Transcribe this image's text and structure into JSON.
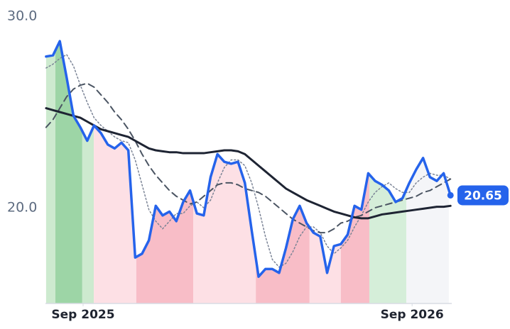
{
  "chart_data": {
    "type": "line",
    "x": [
      -1.35,
      -1.1,
      -0.85,
      -0.6,
      -0.35,
      -0.1,
      0.15,
      0.4,
      0.65,
      0.9,
      1.15,
      1.4,
      1.65,
      1.9,
      2.15,
      2.4,
      2.65,
      2.9,
      3.15,
      3.4,
      3.65,
      3.9,
      4.15,
      4.4,
      4.65,
      4.9,
      5.15,
      5.4,
      5.65,
      5.9,
      6.15,
      6.4,
      6.65,
      6.9,
      7.15,
      7.4,
      7.65,
      7.9,
      8.15,
      8.4,
      8.65,
      8.9,
      9.15,
      9.4,
      9.65,
      9.9,
      10.15,
      10.4,
      10.65,
      10.9,
      11.15,
      11.4,
      11.65,
      11.9,
      12.15,
      12.4,
      12.65,
      12.9,
      13.15,
      13.4
    ],
    "xlim": [
      -1.373,
      13.446
    ],
    "xticks": [
      {
        "value": 0,
        "label": "Sep 2025"
      },
      {
        "value": 12,
        "label": "Sep 2026"
      }
    ],
    "ylim": [
      15,
      30
    ],
    "yticks": [
      {
        "value": 20,
        "label": "20.0"
      },
      {
        "value": 30,
        "label": "30.0"
      }
    ],
    "series": [
      {
        "color": "#2563eb",
        "style": "solid",
        "width": 3.5,
        "values": [
          27.9,
          27.96,
          28.7,
          26.8,
          24.8,
          24.2,
          23.5,
          24.3,
          23.9,
          23.3,
          23.1,
          23.4,
          23.0,
          17.4,
          17.6,
          18.3,
          20.1,
          19.6,
          19.8,
          19.3,
          20.3,
          20.9,
          19.7,
          19.6,
          21.6,
          22.8,
          22.4,
          22.3,
          22.4,
          21.3,
          18.8,
          16.4,
          16.8,
          16.8,
          16.6,
          17.9,
          19.4,
          20.1,
          19.2,
          18.7,
          18.5,
          16.6,
          18.0,
          18.1,
          18.6,
          20.1,
          19.9,
          21.8,
          21.4,
          21.2,
          20.9,
          20.3,
          20.5,
          21.3,
          22.0,
          22.6,
          21.6,
          21.4,
          21.8,
          20.65
        ]
      },
      {
        "color": "#1e2433",
        "style": "solid",
        "width": 3,
        "values": [
          25.2,
          25.1,
          25.0,
          24.9,
          24.8,
          24.7,
          24.5,
          24.3,
          24.1,
          24.0,
          23.9,
          23.8,
          23.7,
          23.5,
          23.3,
          23.1,
          23.0,
          22.95,
          22.9,
          22.9,
          22.85,
          22.85,
          22.85,
          22.85,
          22.9,
          22.95,
          23.0,
          23.0,
          22.95,
          22.8,
          22.5,
          22.2,
          21.9,
          21.6,
          21.3,
          21.0,
          20.8,
          20.6,
          20.4,
          20.25,
          20.1,
          19.95,
          19.8,
          19.7,
          19.6,
          19.5,
          19.45,
          19.45,
          19.55,
          19.65,
          19.7,
          19.75,
          19.8,
          19.85,
          19.9,
          19.95,
          20.0,
          20.05,
          20.05,
          20.1
        ]
      },
      {
        "color": "#4b5563",
        "style": "dashed",
        "width": 2,
        "values": [
          24.2,
          24.6,
          25.2,
          25.8,
          26.2,
          26.4,
          26.5,
          26.3,
          25.9,
          25.5,
          25.0,
          24.6,
          24.1,
          23.5,
          22.8,
          22.2,
          21.7,
          21.3,
          20.9,
          20.6,
          20.4,
          20.2,
          20.3,
          20.6,
          20.9,
          21.2,
          21.3,
          21.3,
          21.2,
          21.0,
          20.9,
          20.8,
          20.6,
          20.3,
          20.0,
          19.7,
          19.4,
          19.2,
          19.0,
          18.8,
          18.7,
          18.7,
          18.9,
          19.2,
          19.3,
          19.5,
          19.6,
          19.8,
          20.0,
          20.1,
          20.2,
          20.3,
          20.4,
          20.5,
          20.6,
          20.8,
          20.9,
          21.1,
          21.3,
          21.5
        ]
      },
      {
        "color": "#7b8496",
        "style": "dotted",
        "width": 1.5,
        "values": [
          27.3,
          27.5,
          27.8,
          28.0,
          27.4,
          26.4,
          25.5,
          24.7,
          24.3,
          24.0,
          23.7,
          23.5,
          23.4,
          22.5,
          21.2,
          19.9,
          19.3,
          18.9,
          19.3,
          19.7,
          19.7,
          20.1,
          20.3,
          20.0,
          20.4,
          21.3,
          22.1,
          22.5,
          22.5,
          22.2,
          21.3,
          20.0,
          18.5,
          17.3,
          16.9,
          17.1,
          17.7,
          18.5,
          19.0,
          19.0,
          18.7,
          18.0,
          17.6,
          17.9,
          18.3,
          19.0,
          19.6,
          20.3,
          20.8,
          21.1,
          21.3,
          21.0,
          20.8,
          20.8,
          21.3,
          21.6,
          21.8,
          21.7,
          21.7,
          21.5
        ]
      }
    ],
    "regions": [
      {
        "x0": -1.37,
        "x1": -1.01,
        "color": "#cdeacf"
      },
      {
        "x0": -1.01,
        "x1": -0.03,
        "color": "#9dd5a6"
      },
      {
        "x0": -0.03,
        "x1": 0.39,
        "color": "#cdeacf"
      },
      {
        "x0": 0.39,
        "x1": 1.94,
        "color": "#fde0e5"
      },
      {
        "x0": 1.94,
        "x1": 4.02,
        "color": "#f8bdc7"
      },
      {
        "x0": 4.02,
        "x1": 6.3,
        "color": "#fde0e5"
      },
      {
        "x0": 6.3,
        "x1": 8.26,
        "color": "#f8bdc7"
      },
      {
        "x0": 8.26,
        "x1": 9.4,
        "color": "#fde0e5"
      },
      {
        "x0": 9.4,
        "x1": 10.44,
        "color": "#f8bdc7"
      },
      {
        "x0": 10.44,
        "x1": 11.79,
        "color": "#d5eed9"
      },
      {
        "x0": 11.79,
        "x1": 13.34,
        "color": "#f4f5f8"
      }
    ]
  }
}
